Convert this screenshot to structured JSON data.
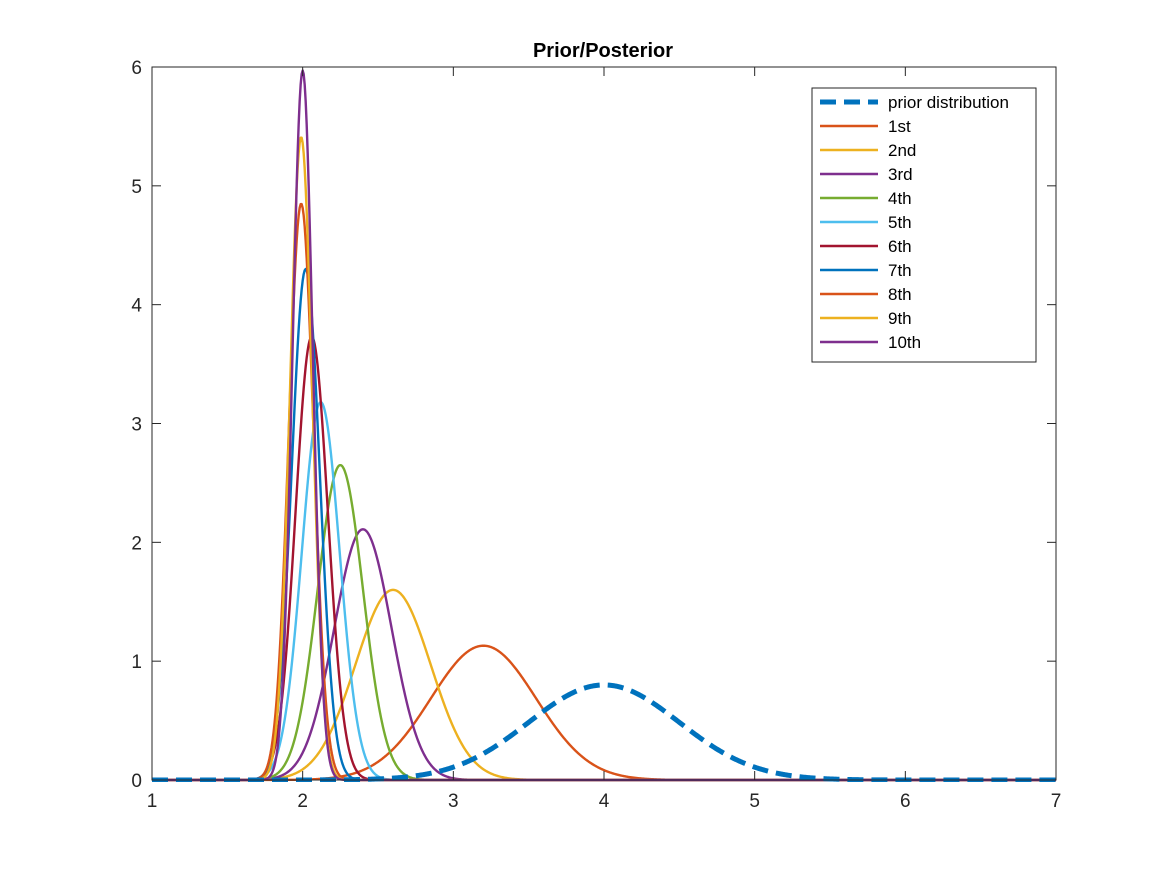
{
  "chart_data": {
    "type": "line",
    "title": "Prior/Posterior",
    "xlabel": "",
    "ylabel": "",
    "xlim": [
      1,
      7
    ],
    "ylim": [
      0,
      6
    ],
    "xticks": [
      1,
      2,
      3,
      4,
      5,
      6,
      7
    ],
    "yticks": [
      0,
      1,
      2,
      3,
      4,
      5,
      6
    ],
    "grid": false,
    "legend_position": "top-right",
    "series": [
      {
        "name": "prior distribution",
        "mean": 4.0,
        "sd": 0.5,
        "peak": 0.8,
        "color": "#0072BD",
        "style": "dashed"
      },
      {
        "name": "1st",
        "mean": 3.2,
        "sd": 0.35,
        "peak": 1.13,
        "color": "#D95319",
        "style": "solid"
      },
      {
        "name": "2nd",
        "mean": 2.6,
        "sd": 0.25,
        "peak": 1.6,
        "color": "#EDB120",
        "style": "solid"
      },
      {
        "name": "3rd",
        "mean": 2.4,
        "sd": 0.19,
        "peak": 2.11,
        "color": "#7E2F8E",
        "style": "solid"
      },
      {
        "name": "4th",
        "mean": 2.25,
        "sd": 0.15,
        "peak": 2.65,
        "color": "#77AC30",
        "style": "solid"
      },
      {
        "name": "5th",
        "mean": 2.12,
        "sd": 0.125,
        "peak": 3.18,
        "color": "#4DBEEE",
        "style": "solid"
      },
      {
        "name": "6th",
        "mean": 2.06,
        "sd": 0.107,
        "peak": 3.73,
        "color": "#A2142F",
        "style": "solid"
      },
      {
        "name": "7th",
        "mean": 2.02,
        "sd": 0.093,
        "peak": 4.3,
        "color": "#0072BD",
        "style": "solid"
      },
      {
        "name": "8th",
        "mean": 1.99,
        "sd": 0.082,
        "peak": 4.85,
        "color": "#D95319",
        "style": "solid"
      },
      {
        "name": "9th",
        "mean": 1.99,
        "sd": 0.074,
        "peak": 5.41,
        "color": "#EDB120",
        "style": "solid"
      },
      {
        "name": "10th",
        "mean": 2.0,
        "sd": 0.067,
        "peak": 5.97,
        "color": "#7E2F8E",
        "style": "solid"
      }
    ]
  }
}
